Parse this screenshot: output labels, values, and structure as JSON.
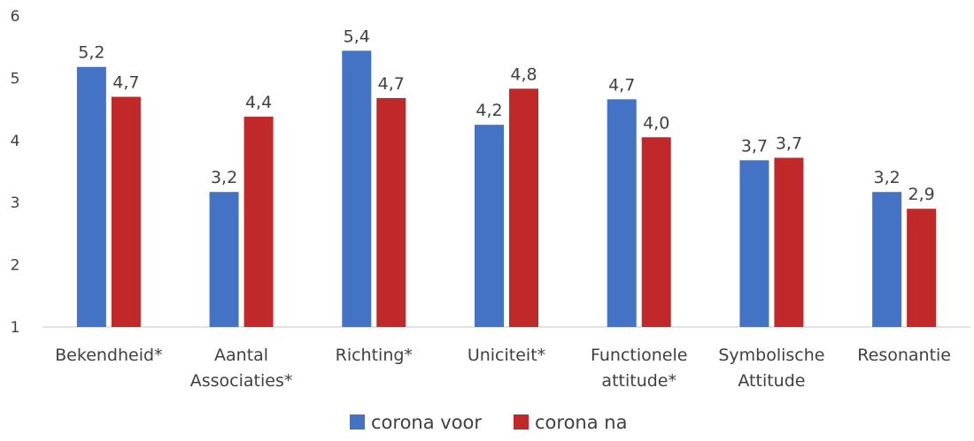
{
  "chart_data": {
    "type": "bar",
    "title": "",
    "xlabel": "",
    "ylabel": "",
    "ylim": [
      1,
      6
    ],
    "yticks": [
      "1",
      "2",
      "3",
      "4",
      "5",
      "6"
    ],
    "grid": false,
    "legend_position": "bottom",
    "categories": [
      [
        "Bekendheid*"
      ],
      [
        "Aantal",
        "Associaties*"
      ],
      [
        "Richting*"
      ],
      [
        "Uniciteit*"
      ],
      [
        "Functionele",
        "attitude*"
      ],
      [
        "Symbolische",
        "Attitude"
      ],
      [
        "Resonantie"
      ]
    ],
    "series": [
      {
        "name": "corona voor",
        "color": "#4472C4",
        "values": [
          5.18,
          3.17,
          5.44,
          4.25,
          4.66,
          3.68,
          3.17
        ],
        "labels": [
          "5,2",
          "3,2",
          "5,4",
          "4,2",
          "4,7",
          "3,7",
          "3,2"
        ]
      },
      {
        "name": "corona na",
        "color": "#C0282A",
        "values": [
          4.7,
          4.38,
          4.68,
          4.83,
          4.05,
          3.72,
          2.9
        ],
        "labels": [
          "4,7",
          "4,4",
          "4,7",
          "4,8",
          "4,0",
          "3,7",
          "2,9"
        ]
      }
    ]
  }
}
